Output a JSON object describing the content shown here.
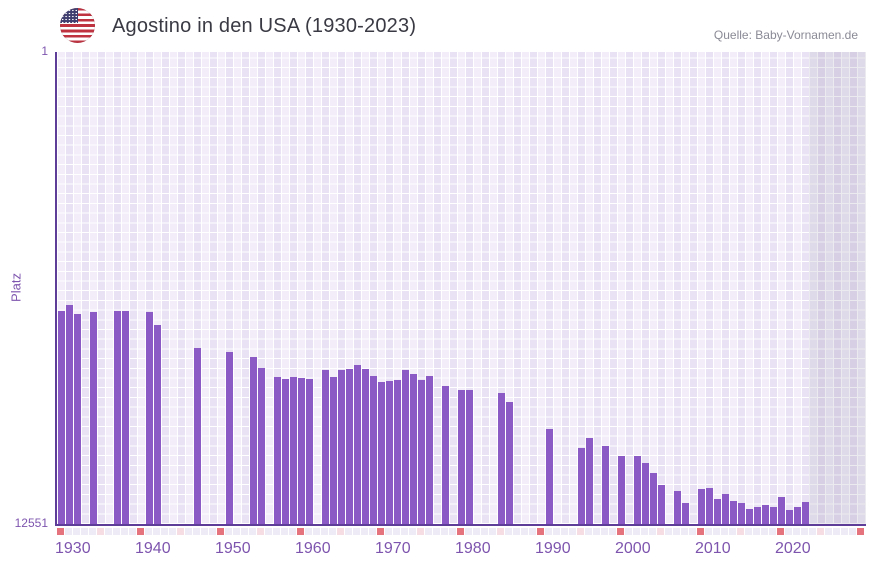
{
  "header": {
    "title": "Agostino in den USA (1930-2023)",
    "source": "Quelle: Baby-Vornamen.de",
    "flag_icon": "us-flag"
  },
  "chart_data": {
    "type": "bar",
    "title": "Agostino in den USA (1930-2023)",
    "ylabel": "Platz",
    "y_axis": {
      "label": "Platz",
      "top_tick": "1",
      "bottom_tick": "12551",
      "min": 1,
      "max": 12551,
      "inverted": true
    },
    "x_axis": {
      "start_year": 1930,
      "end_year": 2023,
      "axis_end_year": 2030,
      "decade_tick_labels": [
        "1930",
        "1940",
        "1950",
        "1960",
        "1970",
        "1980",
        "1990",
        "2000",
        "2010",
        "2020"
      ]
    },
    "legend": "none",
    "grid": true,
    "series": [
      {
        "year": 1930,
        "rank": 6890
      },
      {
        "year": 1931,
        "rank": 6740
      },
      {
        "year": 1932,
        "rank": 6980
      },
      {
        "year": 1934,
        "rank": 6910
      },
      {
        "year": 1937,
        "rank": 6895
      },
      {
        "year": 1938,
        "rank": 6895
      },
      {
        "year": 1941,
        "rank": 6910
      },
      {
        "year": 1942,
        "rank": 7250
      },
      {
        "year": 1947,
        "rank": 7860
      },
      {
        "year": 1951,
        "rank": 7975
      },
      {
        "year": 1954,
        "rank": 8120
      },
      {
        "year": 1955,
        "rank": 8405
      },
      {
        "year": 1957,
        "rank": 8655
      },
      {
        "year": 1958,
        "rank": 8695
      },
      {
        "year": 1959,
        "rank": 8655
      },
      {
        "year": 1960,
        "rank": 8660
      },
      {
        "year": 1961,
        "rank": 8695
      },
      {
        "year": 1963,
        "rank": 8450
      },
      {
        "year": 1964,
        "rank": 8655
      },
      {
        "year": 1965,
        "rank": 8465
      },
      {
        "year": 1966,
        "rank": 8430
      },
      {
        "year": 1967,
        "rank": 8315
      },
      {
        "year": 1968,
        "rank": 8430
      },
      {
        "year": 1969,
        "rank": 8625
      },
      {
        "year": 1970,
        "rank": 8785
      },
      {
        "year": 1971,
        "rank": 8760
      },
      {
        "year": 1972,
        "rank": 8715
      },
      {
        "year": 1973,
        "rank": 8450
      },
      {
        "year": 1974,
        "rank": 8560
      },
      {
        "year": 1975,
        "rank": 8715
      },
      {
        "year": 1976,
        "rank": 8625
      },
      {
        "year": 1978,
        "rank": 8875
      },
      {
        "year": 1980,
        "rank": 8980
      },
      {
        "year": 1981,
        "rank": 8980
      },
      {
        "year": 1985,
        "rank": 9070
      },
      {
        "year": 1986,
        "rank": 9320
      },
      {
        "year": 1991,
        "rank": 10030
      },
      {
        "year": 1995,
        "rank": 10535
      },
      {
        "year": 1996,
        "rank": 10270
      },
      {
        "year": 1998,
        "rank": 10490
      },
      {
        "year": 2000,
        "rank": 10740
      },
      {
        "year": 2002,
        "rank": 10740
      },
      {
        "year": 2003,
        "rank": 10925
      },
      {
        "year": 2004,
        "rank": 11185
      },
      {
        "year": 2005,
        "rank": 11525
      },
      {
        "year": 2007,
        "rank": 11665
      },
      {
        "year": 2008,
        "rank": 12000
      },
      {
        "year": 2010,
        "rank": 11625
      },
      {
        "year": 2011,
        "rank": 11600
      },
      {
        "year": 2012,
        "rank": 11875
      },
      {
        "year": 2013,
        "rank": 11750
      },
      {
        "year": 2014,
        "rank": 11940
      },
      {
        "year": 2015,
        "rank": 12000
      },
      {
        "year": 2016,
        "rank": 12160
      },
      {
        "year": 2017,
        "rank": 12090
      },
      {
        "year": 2018,
        "rank": 12045
      },
      {
        "year": 2019,
        "rank": 12090
      },
      {
        "year": 2020,
        "rank": 11825
      },
      {
        "year": 2021,
        "rank": 12180
      },
      {
        "year": 2022,
        "rank": 12090
      },
      {
        "year": 2023,
        "rank": 11975
      }
    ],
    "colors": {
      "bar": "#8b5ac5",
      "axis": "#5e3d99",
      "plot_column_light": "#f2edf9",
      "plot_column_dark": "#e9e2f4",
      "future_region_overlay": "rgba(90,82,122,0.12)",
      "decade_marker": "#e4737e",
      "half_decade_marker": "#f6dce3",
      "marker_cell": "#eeeaf6",
      "tick_label": "#7e55ae",
      "title_text": "#3a3a44",
      "source_text": "#8a8a96"
    }
  }
}
